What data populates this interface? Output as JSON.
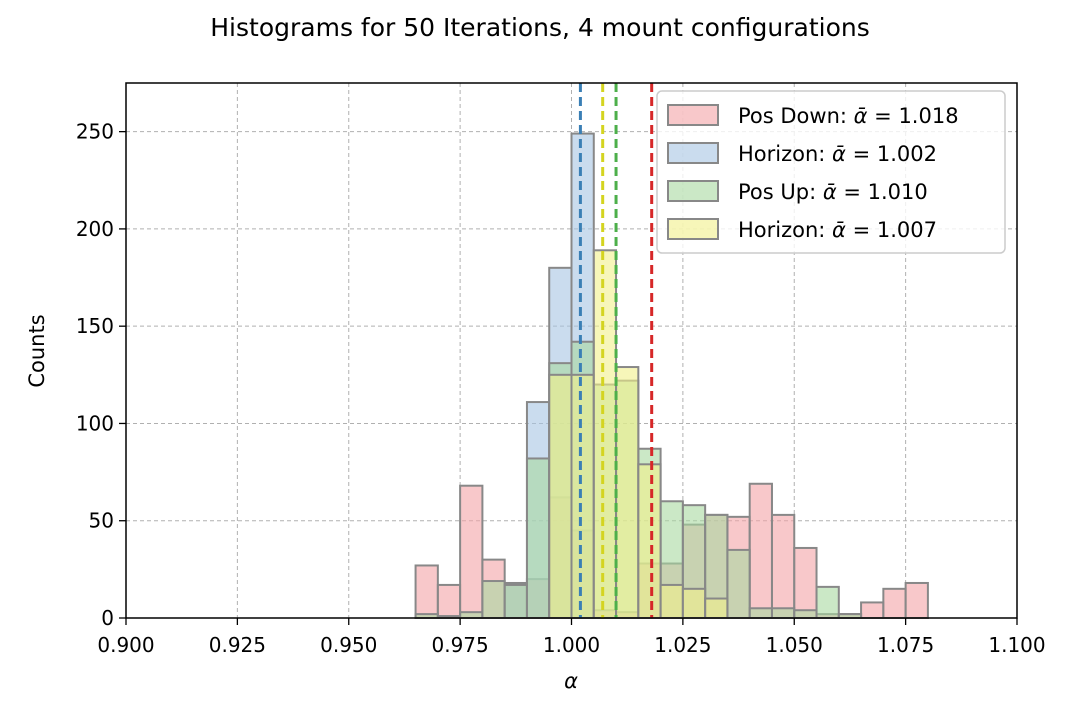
{
  "chart_data": {
    "type": "histogram",
    "title": "Histograms for 50 Iterations, 4 mount configurations",
    "xlabel": "α",
    "ylabel": "Counts",
    "xlim": [
      0.9,
      1.1
    ],
    "ylim": [
      0,
      275
    ],
    "xticks": [
      "0.900",
      "0.925",
      "0.950",
      "0.975",
      "1.000",
      "1.025",
      "1.050",
      "1.075",
      "1.100"
    ],
    "yticks": [
      "0",
      "50",
      "100",
      "150",
      "200",
      "250"
    ],
    "grid": true,
    "legend_position": "top-right",
    "bin_width": 0.005,
    "bin_starts": [
      0.965,
      0.97,
      0.975,
      0.98,
      0.985,
      0.99,
      0.995,
      1.0,
      1.005,
      1.01,
      1.015,
      1.02,
      1.025,
      1.03,
      1.035,
      1.04,
      1.045,
      1.05,
      1.055,
      1.06,
      1.065,
      1.07,
      1.075
    ],
    "series": [
      {
        "name": "Pos Down: ᾱ = 1.018",
        "legend_prefix": "Pos Down: ",
        "legend_value": "1.018",
        "mean": 1.018,
        "fill": "#f4a3a6",
        "edge": "#888888",
        "mean_line": "#d62728",
        "counts": [
          27,
          17,
          68,
          30,
          17,
          20,
          62,
          45,
          4,
          3,
          28,
          28,
          48,
          53,
          52,
          69,
          53,
          36,
          2,
          2,
          8,
          15,
          18
        ]
      },
      {
        "name": "Horizon: ᾱ = 1.002",
        "legend_prefix": "Horizon: ",
        "legend_value": "1.002",
        "mean": 1.002,
        "fill": "#a6c4e2",
        "edge": "#888888",
        "mean_line": "#3a7fb5",
        "counts": [
          0,
          0,
          0,
          0,
          18,
          111,
          180,
          249,
          0,
          0,
          0,
          0,
          0,
          0,
          0,
          0,
          0,
          0,
          0,
          0,
          0,
          0,
          0
        ]
      },
      {
        "name": "Pos Up: ᾱ = 1.010",
        "legend_prefix": "Pos Up: ",
        "legend_value": "1.010",
        "mean": 1.01,
        "fill": "#a9d9a0",
        "edge": "#888888",
        "mean_line": "#4daf4a",
        "counts": [
          2,
          1,
          3,
          19,
          17,
          82,
          131,
          142,
          120,
          122,
          87,
          60,
          58,
          53,
          35,
          5,
          5,
          4,
          16,
          2,
          0,
          0,
          0
        ]
      },
      {
        "name": "Horizon: ᾱ = 1.007",
        "legend_prefix": "Horizon: ",
        "legend_value": "1.007",
        "mean": 1.007,
        "fill": "#f2f08a",
        "edge": "#888888",
        "mean_line": "#d4d420",
        "counts": [
          0,
          0,
          0,
          0,
          0,
          0,
          125,
          125,
          189,
          129,
          79,
          17,
          15,
          10,
          0,
          0,
          0,
          0,
          0,
          0,
          0,
          0,
          0
        ]
      }
    ]
  }
}
